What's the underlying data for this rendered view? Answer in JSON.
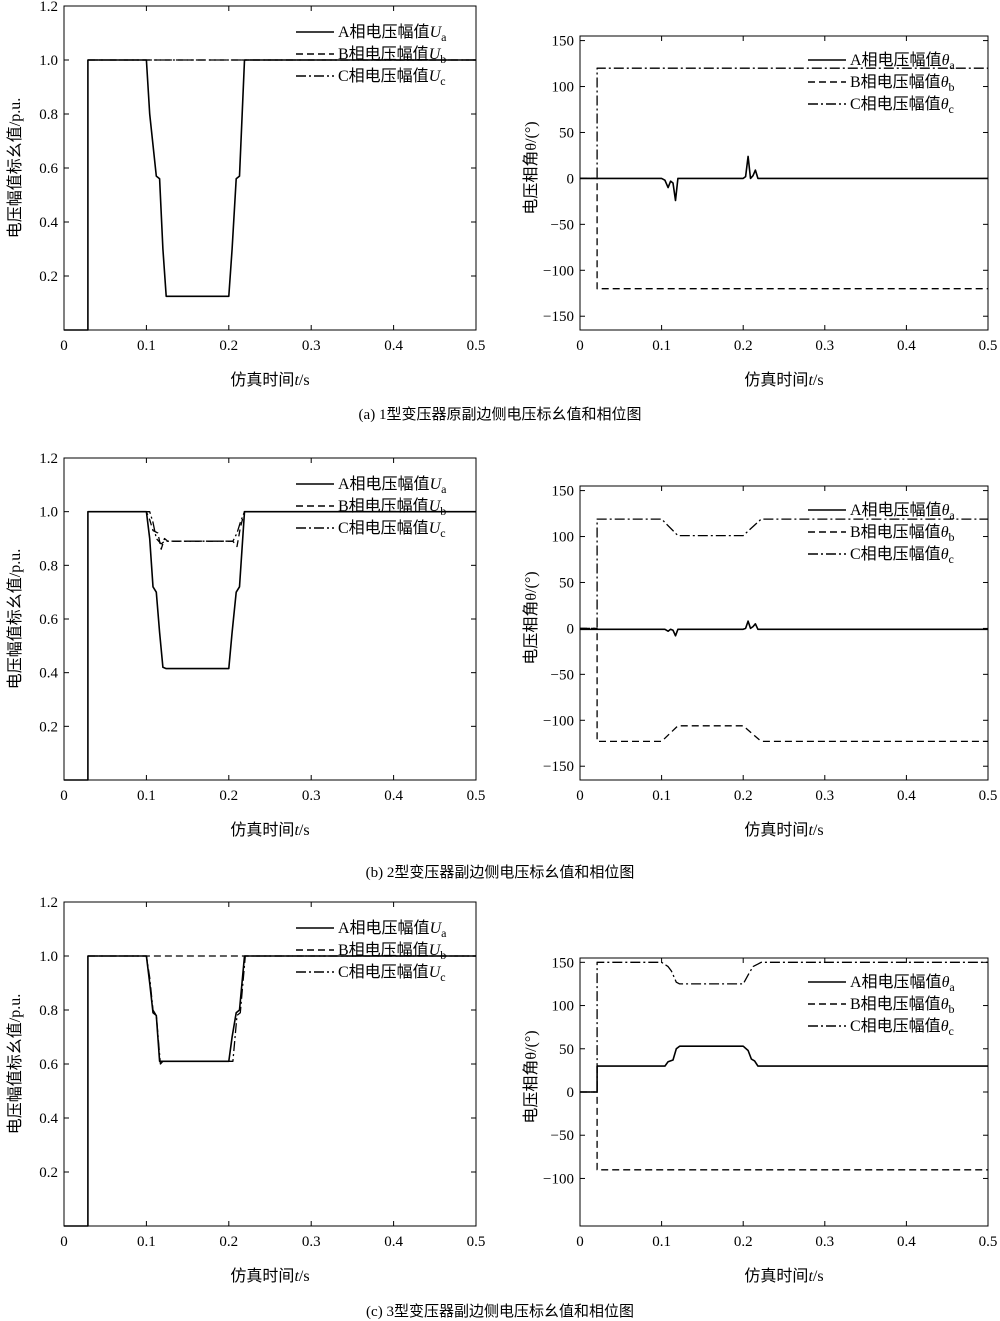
{
  "figure": {
    "captions": [
      "(a) 1型变压器原副边侧电压标幺值和相位图",
      "(b) 2型变压器副边侧电压标幺值和相位图",
      "(c) 3型变压器副边侧电压标幺值和相位图"
    ]
  },
  "chart_data": [
    {
      "id": "a-magnitude",
      "type": "line",
      "xlabel_prefix": "仿真时间",
      "xlabel_var": "t",
      "xlabel_suffix": "/s",
      "ylabel": "电压幅值标幺值/p.u.",
      "xlim": [
        0,
        0.5
      ],
      "ylim": [
        0,
        1.2
      ],
      "xticks": [
        0,
        0.1,
        0.2,
        0.3,
        0.4,
        0.5
      ],
      "xtick_labels": [
        "0",
        "0.1",
        "0.2",
        "0.3",
        "0.4",
        "0.5"
      ],
      "yticks": [
        0.2,
        0.4,
        0.6,
        0.8,
        1.0,
        1.2
      ],
      "ytick_labels": [
        "0.2",
        "0.4",
        "0.6",
        "0.8",
        "1.0",
        "1.2"
      ],
      "legend": "upper-right",
      "series": [
        {
          "name": "A相电压幅值",
          "sym": "U",
          "sub": "a",
          "style": "solid",
          "x": [
            0,
            0.029,
            0.029,
            0.1,
            0.104,
            0.112,
            0.116,
            0.12,
            0.124,
            0.2,
            0.204,
            0.209,
            0.213,
            0.219,
            0.5
          ],
          "y": [
            0,
            0,
            1.0,
            1.0,
            0.8,
            0.57,
            0.56,
            0.3,
            0.125,
            0.125,
            0.3,
            0.56,
            0.57,
            1.0,
            1.0
          ]
        },
        {
          "name": "B相电压幅值",
          "sym": "U",
          "sub": "b",
          "style": "dashed",
          "x": [
            0.029,
            0.5
          ],
          "y": [
            1.0,
            1.0
          ]
        },
        {
          "name": "C相电压幅值",
          "sym": "U",
          "sub": "c",
          "style": "dashdot",
          "x": [
            0.029,
            0.5
          ],
          "y": [
            1.0,
            1.0
          ]
        }
      ]
    },
    {
      "id": "a-phase",
      "type": "line",
      "xlabel_prefix": "仿真时间",
      "xlabel_var": "t",
      "xlabel_suffix": "/s",
      "ylabel": "电压相角θ/(°)",
      "xlim": [
        0,
        0.5
      ],
      "ylim": [
        -165,
        155
      ],
      "xticks": [
        0,
        0.1,
        0.2,
        0.3,
        0.4,
        0.5
      ],
      "xtick_labels": [
        "0",
        "0.1",
        "0.2",
        "0.3",
        "0.4",
        "0.5"
      ],
      "yticks": [
        -150,
        -100,
        -50,
        0,
        50,
        100,
        150
      ],
      "ytick_labels": [
        "−150",
        "−100",
        "−50",
        "0",
        "50",
        "100",
        "150"
      ],
      "legend": "upper-right",
      "series": [
        {
          "name": "A相电压幅值",
          "sym": "θ",
          "sub": "a",
          "style": "solid",
          "x": [
            0,
            0.1,
            0.104,
            0.108,
            0.111,
            0.114,
            0.117,
            0.12,
            0.2,
            0.203,
            0.206,
            0.209,
            0.212,
            0.215,
            0.218,
            0.5
          ],
          "y": [
            0,
            0,
            -2,
            -10,
            -3,
            -5,
            -24,
            0,
            0,
            2,
            24,
            0,
            3,
            9,
            0,
            0
          ]
        },
        {
          "name": "B相电压幅值",
          "sym": "θ",
          "sub": "b",
          "style": "dashed",
          "x": [
            0,
            0.021,
            0.021,
            0.5
          ],
          "y": [
            0,
            0,
            -120,
            -120
          ]
        },
        {
          "name": "C相电压幅值",
          "sym": "θ",
          "sub": "c",
          "style": "dashdot",
          "x": [
            0,
            0.021,
            0.021,
            0.5
          ],
          "y": [
            0,
            0,
            120,
            120
          ]
        }
      ]
    },
    {
      "id": "b-magnitude",
      "type": "line",
      "xlabel_prefix": "仿真时间",
      "xlabel_var": "t",
      "xlabel_suffix": "/s",
      "ylabel": "电压幅值标幺值/p.u.",
      "xlim": [
        0,
        0.5
      ],
      "ylim": [
        0,
        1.2
      ],
      "xticks": [
        0,
        0.1,
        0.2,
        0.3,
        0.4,
        0.5
      ],
      "xtick_labels": [
        "0",
        "0.1",
        "0.2",
        "0.3",
        "0.4",
        "0.5"
      ],
      "yticks": [
        0.2,
        0.4,
        0.6,
        0.8,
        1.0,
        1.2
      ],
      "ytick_labels": [
        "0.2",
        "0.4",
        "0.6",
        "0.8",
        "1.0",
        "1.2"
      ],
      "legend": "upper-right",
      "series": [
        {
          "name": "A相电压幅值",
          "sym": "U",
          "sub": "a",
          "style": "solid",
          "x": [
            0,
            0.029,
            0.029,
            0.1,
            0.104,
            0.108,
            0.112,
            0.116,
            0.12,
            0.124,
            0.2,
            0.204,
            0.209,
            0.213,
            0.219,
            0.5
          ],
          "y": [
            0,
            0,
            1.0,
            1.0,
            0.9,
            0.72,
            0.7,
            0.55,
            0.42,
            0.415,
            0.415,
            0.55,
            0.7,
            0.72,
            1.0,
            1.0
          ]
        },
        {
          "name": "B相电压幅值",
          "sym": "U",
          "sub": "b",
          "style": "dashed",
          "x": [
            0.029,
            0.1,
            0.104,
            0.108,
            0.114,
            0.118,
            0.122,
            0.126,
            0.2,
            0.205,
            0.21,
            0.214,
            0.219,
            0.5
          ],
          "y": [
            1.0,
            1.0,
            0.97,
            0.93,
            0.92,
            0.86,
            0.9,
            0.89,
            0.89,
            0.89,
            0.87,
            0.94,
            1.0,
            1.0
          ]
        },
        {
          "name": "C相电压幅值",
          "sym": "U",
          "sub": "c",
          "style": "dashdot",
          "x": [
            0.029,
            0.1,
            0.104,
            0.108,
            0.112,
            0.118,
            0.122,
            0.126,
            0.2,
            0.205,
            0.21,
            0.214,
            0.219,
            0.5
          ],
          "y": [
            1.0,
            1.0,
            1.0,
            0.96,
            0.9,
            0.88,
            0.89,
            0.89,
            0.89,
            0.89,
            0.92,
            0.96,
            1.0,
            1.0
          ]
        }
      ]
    },
    {
      "id": "b-phase",
      "type": "line",
      "xlabel_prefix": "仿真时间",
      "xlabel_var": "t",
      "xlabel_suffix": "/s",
      "ylabel": "电压相角θ/(°)",
      "xlim": [
        0,
        0.5
      ],
      "ylim": [
        -165,
        155
      ],
      "xticks": [
        0,
        0.1,
        0.2,
        0.3,
        0.4,
        0.5
      ],
      "xtick_labels": [
        "0",
        "0.1",
        "0.2",
        "0.3",
        "0.4",
        "0.5"
      ],
      "yticks": [
        -150,
        -100,
        -50,
        0,
        50,
        100,
        150
      ],
      "ytick_labels": [
        "−150",
        "−100",
        "−50",
        "0",
        "50",
        "100",
        "150"
      ],
      "legend": "upper-right",
      "series": [
        {
          "name": "A相电压幅值",
          "sym": "θ",
          "sub": "a",
          "style": "solid",
          "x": [
            0,
            0.1,
            0.104,
            0.108,
            0.111,
            0.114,
            0.117,
            0.12,
            0.2,
            0.203,
            0.206,
            0.209,
            0.212,
            0.215,
            0.218,
            0.5
          ],
          "y": [
            -1,
            -1,
            -1,
            -3,
            -1,
            -2,
            -8,
            -1,
            -1,
            0,
            8,
            0,
            2,
            5,
            -1,
            -1
          ]
        },
        {
          "name": "B相电压幅值",
          "sym": "θ",
          "sub": "b",
          "style": "dashed",
          "x": [
            0,
            0.021,
            0.021,
            0.1,
            0.12,
            0.2,
            0.222,
            0.5
          ],
          "y": [
            0,
            0,
            -123,
            -123,
            -106,
            -106,
            -123,
            -123
          ]
        },
        {
          "name": "C相电压幅值",
          "sym": "θ",
          "sub": "c",
          "style": "dashdot",
          "x": [
            0,
            0.021,
            0.021,
            0.1,
            0.12,
            0.2,
            0.222,
            0.5
          ],
          "y": [
            0,
            0,
            119,
            119,
            101,
            101,
            119,
            119
          ]
        }
      ]
    },
    {
      "id": "c-magnitude",
      "type": "line",
      "xlabel_prefix": "仿真时间",
      "xlabel_var": "t",
      "xlabel_suffix": "/s",
      "ylabel": "电压幅值标幺值/p.u.",
      "xlim": [
        0,
        0.5
      ],
      "ylim": [
        0,
        1.2
      ],
      "xticks": [
        0,
        0.1,
        0.2,
        0.3,
        0.4,
        0.5
      ],
      "xtick_labels": [
        "0",
        "0.1",
        "0.2",
        "0.3",
        "0.4",
        "0.5"
      ],
      "yticks": [
        0.2,
        0.4,
        0.6,
        0.8,
        1.0,
        1.2
      ],
      "ytick_labels": [
        "0.2",
        "0.4",
        "0.6",
        "0.8",
        "1.0",
        "1.2"
      ],
      "legend": "upper-right",
      "series": [
        {
          "name": "A相电压幅值",
          "sym": "U",
          "sub": "a",
          "style": "solid",
          "x": [
            0,
            0.029,
            0.029,
            0.1,
            0.104,
            0.108,
            0.112,
            0.116,
            0.12,
            0.2,
            0.204,
            0.209,
            0.213,
            0.219,
            0.5
          ],
          "y": [
            0,
            0,
            1.0,
            1.0,
            0.9,
            0.79,
            0.78,
            0.61,
            0.61,
            0.61,
            0.7,
            0.79,
            0.8,
            1.0,
            1.0
          ]
        },
        {
          "name": "B相电压幅值",
          "sym": "U",
          "sub": "b",
          "style": "dashed",
          "x": [
            0.029,
            0.5
          ],
          "y": [
            1.0,
            1.0
          ]
        },
        {
          "name": "C相电压幅值",
          "sym": "U",
          "sub": "c",
          "style": "dashdot",
          "x": [
            0.029,
            0.1,
            0.104,
            0.108,
            0.112,
            0.117,
            0.12,
            0.2,
            0.205,
            0.21,
            0.214,
            0.22,
            0.5
          ],
          "y": [
            1.0,
            1.0,
            0.92,
            0.8,
            0.78,
            0.6,
            0.61,
            0.61,
            0.61,
            0.78,
            0.79,
            1.0,
            1.0
          ]
        }
      ]
    },
    {
      "id": "c-phase",
      "type": "line",
      "xlabel_prefix": "仿真时间",
      "xlabel_var": "t",
      "xlabel_suffix": "/s",
      "ylabel": "电压相角θ/(°)",
      "xlim": [
        0,
        0.5
      ],
      "ylim": [
        -155,
        155
      ],
      "xticks": [
        0,
        0.1,
        0.2,
        0.3,
        0.4,
        0.5
      ],
      "xtick_labels": [
        "0",
        "0.1",
        "0.2",
        "0.3",
        "0.4",
        "0.5"
      ],
      "yticks": [
        -100,
        -50,
        0,
        50,
        100,
        150
      ],
      "ytick_labels": [
        "−100",
        "−50",
        "0",
        "50",
        "100",
        "150"
      ],
      "legend": "upper-right",
      "series": [
        {
          "name": "A相电压幅值",
          "sym": "θ",
          "sub": "a",
          "style": "solid",
          "x": [
            0,
            0.021,
            0.021,
            0.104,
            0.108,
            0.114,
            0.118,
            0.122,
            0.2,
            0.206,
            0.21,
            0.214,
            0.218,
            0.5
          ],
          "y": [
            0,
            0,
            30,
            30,
            35,
            37,
            50,
            53,
            53,
            48,
            38,
            36,
            30,
            30
          ]
        },
        {
          "name": "B相电压幅值",
          "sym": "θ",
          "sub": "b",
          "style": "dashed",
          "x": [
            0,
            0.021,
            0.021,
            0.5
          ],
          "y": [
            0,
            0,
            -90,
            -90
          ]
        },
        {
          "name": "C相电压幅值",
          "sym": "θ",
          "sub": "c",
          "style": "dashdot",
          "x": [
            0,
            0.021,
            0.021,
            0.1,
            0.108,
            0.112,
            0.118,
            0.122,
            0.2,
            0.207,
            0.212,
            0.218,
            0.222,
            0.5
          ],
          "y": [
            0,
            0,
            150,
            150,
            145,
            140,
            127,
            125,
            125,
            137,
            145,
            148,
            150,
            150
          ]
        }
      ]
    }
  ]
}
